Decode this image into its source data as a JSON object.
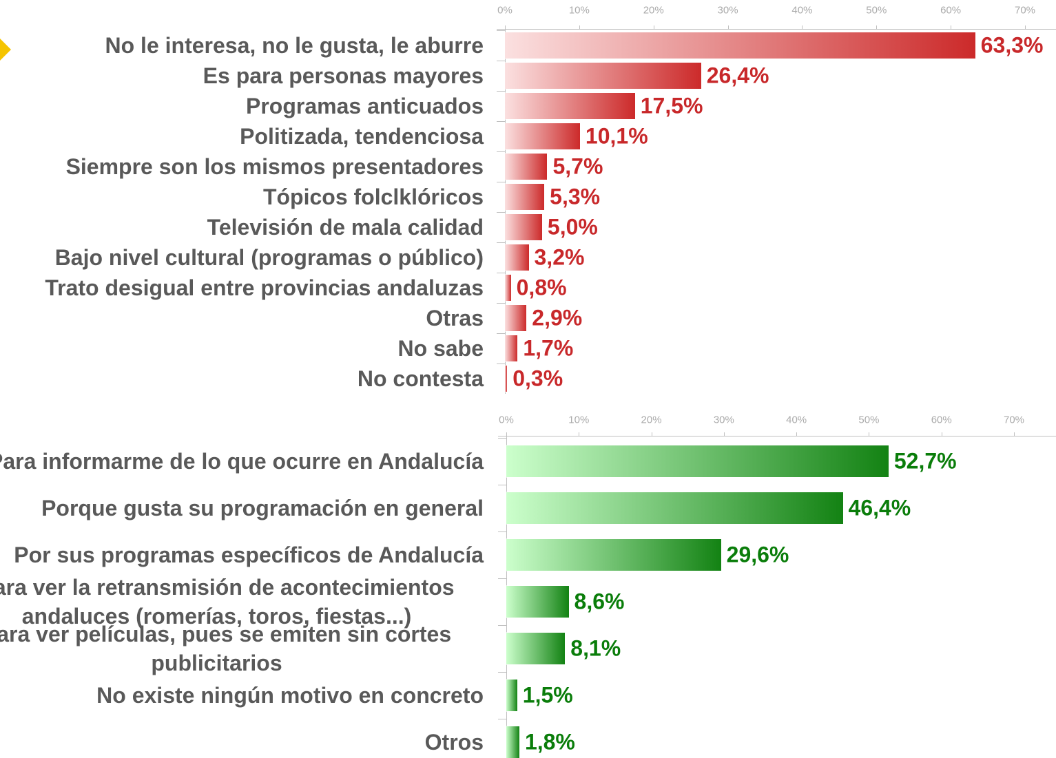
{
  "chart_data": [
    {
      "type": "bar",
      "horizontal": true,
      "categories": [
        "No le interesa, no le gusta, le aburre",
        "Es para personas mayores",
        "Programas anticuados",
        "Politizada, tendenciosa",
        "Siempre son los mismos presentadores",
        "Tópicos folclklóricos",
        "Televisión de mala calidad",
        "Bajo nivel cultural (programas o público)",
        "Trato desigual entre provincias andaluzas",
        "Otras",
        "No sabe",
        "No contesta"
      ],
      "values": [
        63.3,
        26.4,
        17.5,
        10.1,
        5.7,
        5.3,
        5.0,
        3.2,
        0.8,
        2.9,
        1.7,
        0.3
      ],
      "value_labels": [
        "63,3%",
        "26,4%",
        "17,5%",
        "10,1%",
        "5,7%",
        "5,3%",
        "5,0%",
        "3,2%",
        "0,8%",
        "2,9%",
        "1,7%",
        "0,3%"
      ],
      "color": "#cc2a2a",
      "color_light": "#fbe0e0",
      "label_color": "#c8282a",
      "xlim": [
        0,
        70
      ],
      "xticks": [
        {
          "value": 0,
          "label": "0%"
        },
        {
          "value": 10,
          "label": "10%"
        },
        {
          "value": 20,
          "label": "20%"
        },
        {
          "value": 30,
          "label": "30%"
        },
        {
          "value": 40,
          "label": "40%"
        },
        {
          "value": 50,
          "label": "50%"
        },
        {
          "value": 60,
          "label": "60%"
        },
        {
          "value": 70,
          "label": "70%"
        }
      ]
    },
    {
      "type": "bar",
      "horizontal": true,
      "categories": [
        "Para informarme de lo que ocurre en Andalucía",
        "Porque gusta su programación en general",
        "Por sus programas específicos de Andalucía",
        "Para ver la retransmisión de acontecimientos andaluces (romerías, toros, fiestas...)",
        "Para ver películas, pues se emiten sin cortes publicitarios",
        "No existe ningún motivo en concreto",
        "Otros"
      ],
      "values": [
        52.7,
        46.4,
        29.6,
        8.6,
        8.1,
        1.5,
        1.8
      ],
      "value_labels": [
        "52,7%",
        "46,4%",
        "29,6%",
        "8,6%",
        "8,1%",
        "1,5%",
        "1,8%"
      ],
      "color": "#138213",
      "color_light": "#ccffcc",
      "label_color": "#0a7d0a",
      "xlim": [
        0,
        70
      ],
      "xticks": [
        {
          "value": 0,
          "label": "0%"
        },
        {
          "value": 10,
          "label": "10%"
        },
        {
          "value": 20,
          "label": "20%"
        },
        {
          "value": 30,
          "label": "30%"
        },
        {
          "value": 40,
          "label": "40%"
        },
        {
          "value": 50,
          "label": "50%"
        },
        {
          "value": 60,
          "label": "60%"
        },
        {
          "value": 70,
          "label": "70%"
        }
      ]
    }
  ]
}
